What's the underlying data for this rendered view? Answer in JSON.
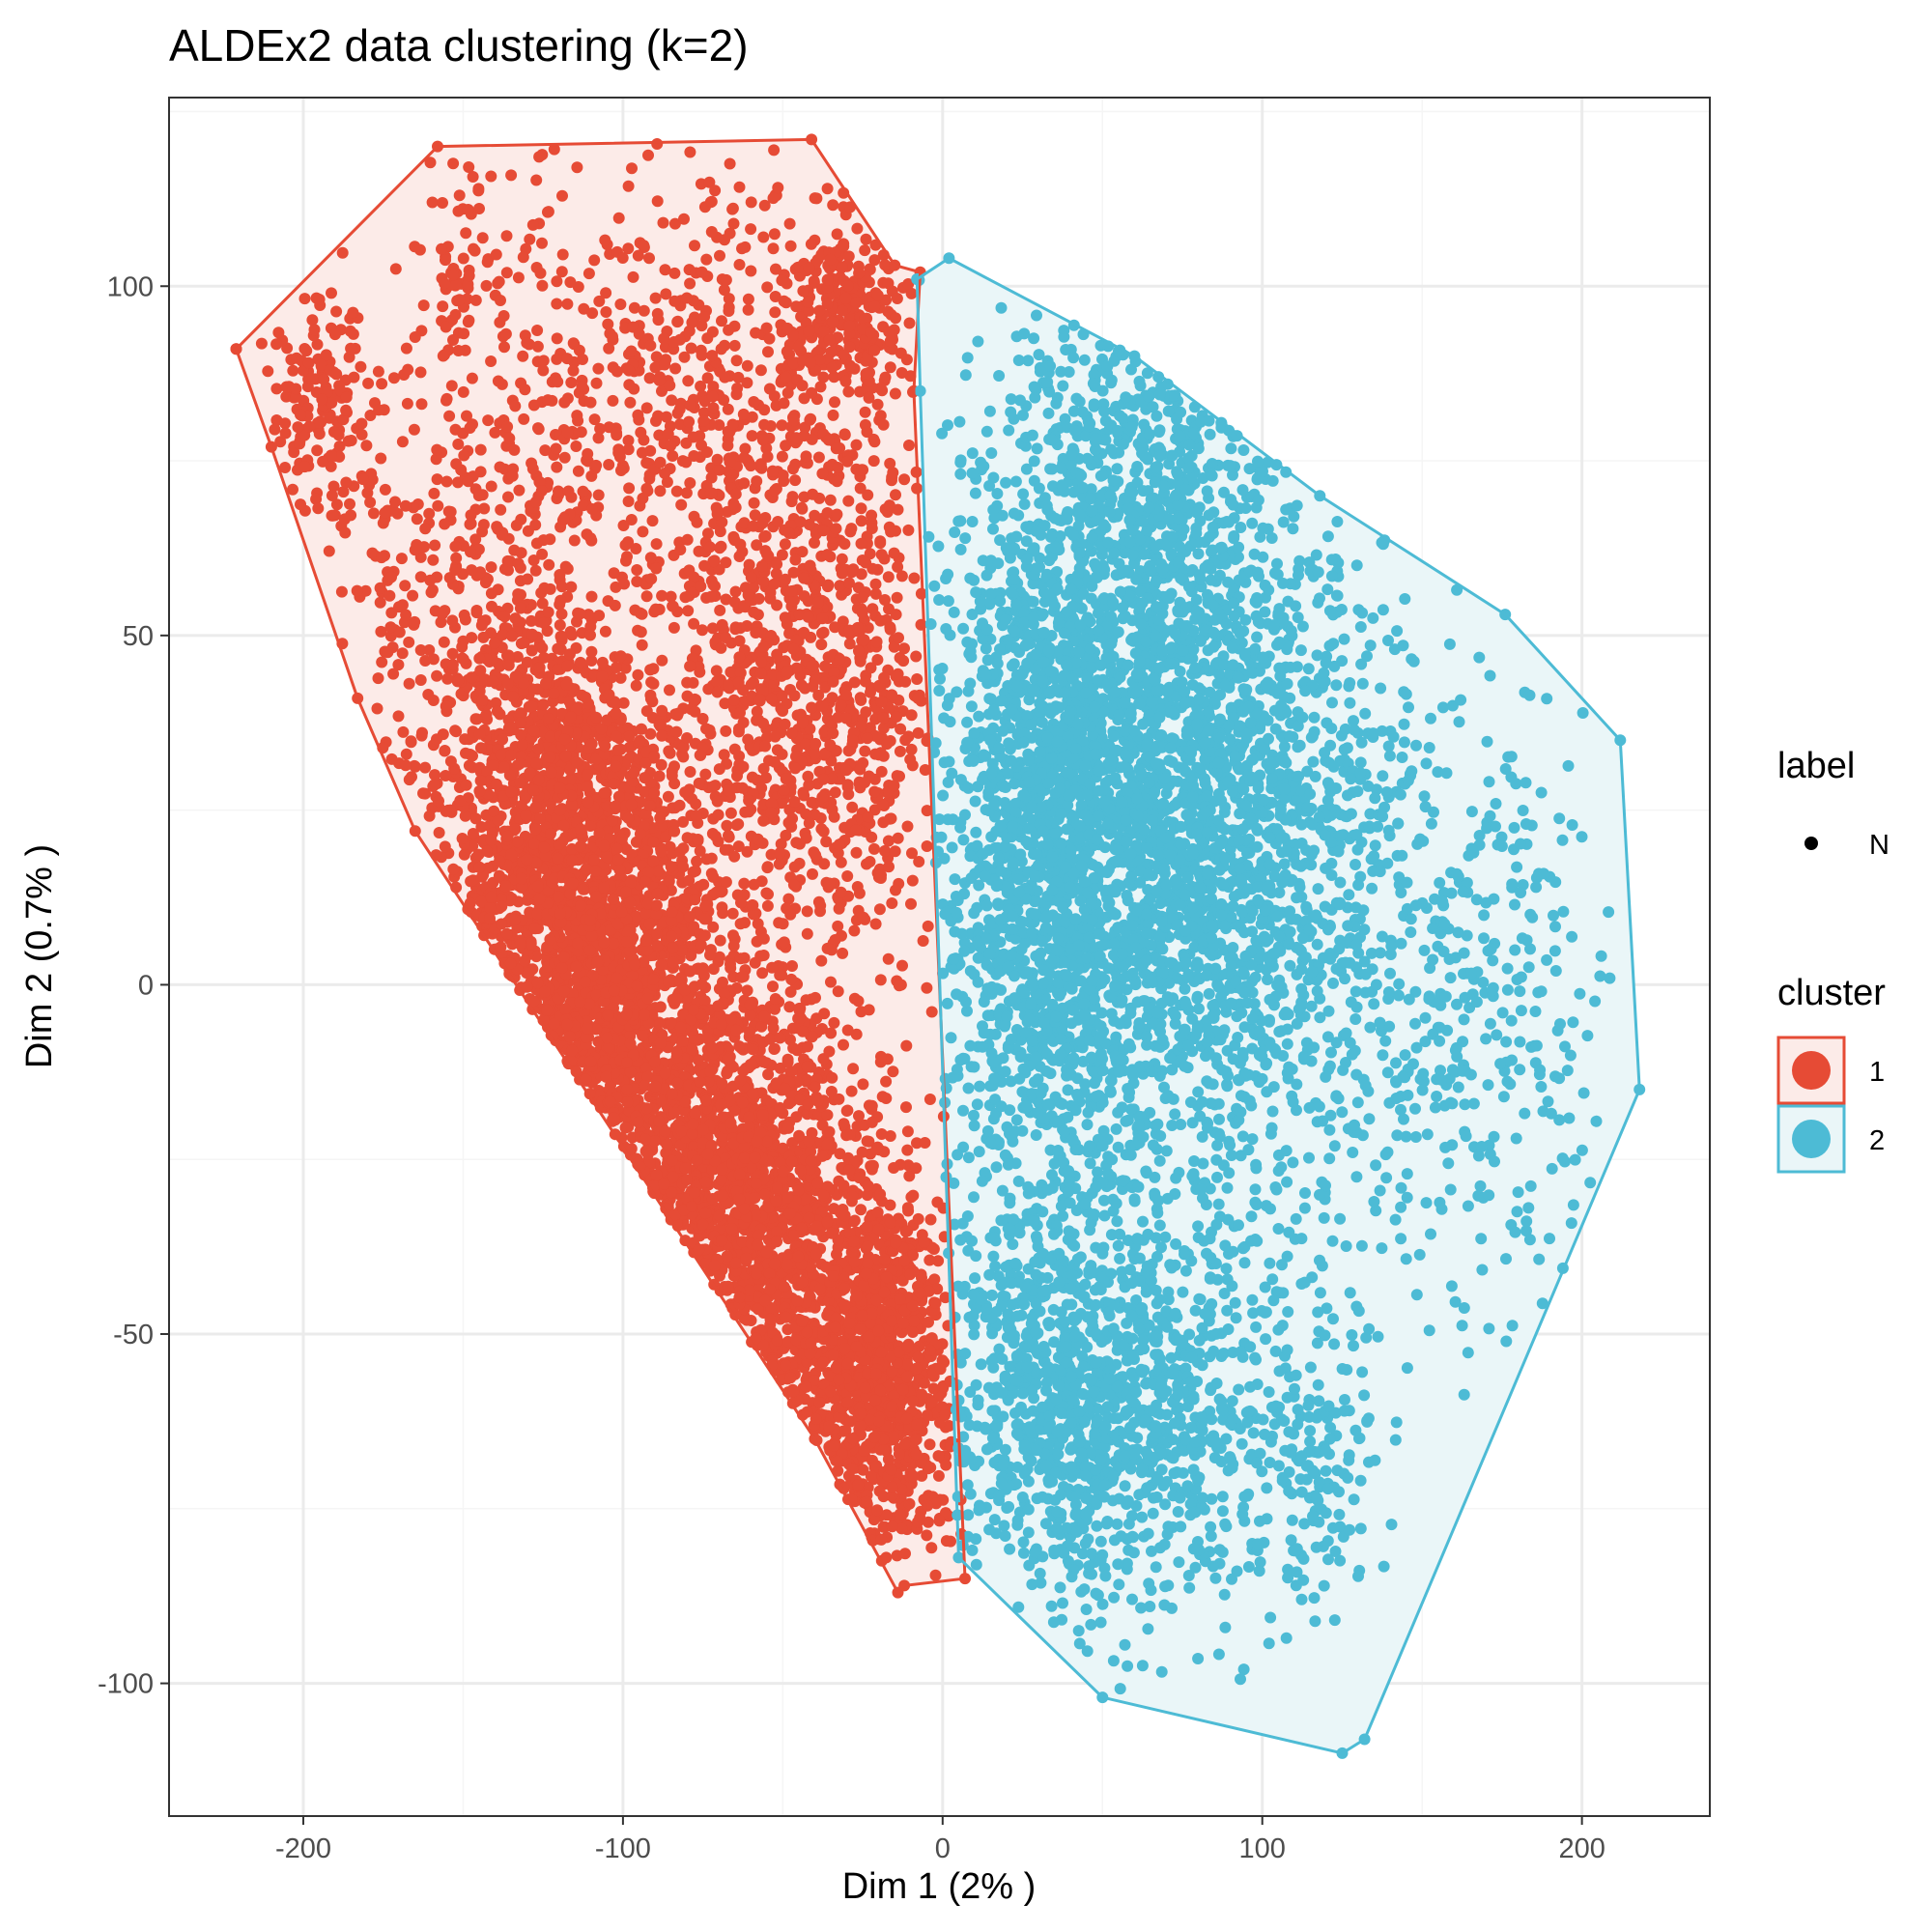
{
  "chart_data": {
    "type": "scatter",
    "title": "ALDEx2 data clustering (k=2)",
    "xlabel": "Dim 1 (2% )",
    "ylabel": "Dim 2 (0.7% )",
    "xlim": [
      -242,
      240
    ],
    "ylim": [
      -119,
      127
    ],
    "x_ticks": [
      -200,
      -100,
      0,
      100,
      200
    ],
    "y_ticks": [
      -100,
      -50,
      0,
      50,
      100
    ],
    "x_tick_labels": [
      "-200",
      "-100",
      "0",
      "100",
      "200"
    ],
    "y_tick_labels": [
      "-100",
      "-50",
      "0",
      "50",
      "100"
    ],
    "grid": true,
    "legend_position": "right",
    "legend": {
      "label_title": "label",
      "label_entries": [
        "N"
      ],
      "cluster_title": "cluster",
      "cluster_entries": [
        "1",
        "2"
      ]
    },
    "series": [
      {
        "name": "1",
        "color": "#E64B35",
        "fill": "#FCEBE8",
        "hull": [
          [
            -221,
            91
          ],
          [
            -158,
            120
          ],
          [
            -41,
            121
          ],
          [
            -15,
            103
          ],
          [
            -7,
            102
          ],
          [
            -9,
            85
          ],
          [
            7,
            -85
          ],
          [
            -12,
            -86
          ],
          [
            -14,
            -87
          ],
          [
            -40,
            -65
          ],
          [
            -165,
            22
          ],
          [
            -183,
            41
          ],
          [
            -210,
            77
          ],
          [
            -221,
            91
          ]
        ],
        "clusters": [
          {
            "cx": -110,
            "cy": -5,
            "sx": 22,
            "sy": 22,
            "n": 1600,
            "rot": -38
          },
          {
            "cx": -60,
            "cy": -35,
            "sx": 22,
            "sy": 18,
            "n": 1600,
            "rot": -40
          },
          {
            "cx": -20,
            "cy": -55,
            "sx": 12,
            "sy": 14,
            "n": 900,
            "rot": 0
          },
          {
            "cx": -120,
            "cy": 25,
            "sx": 18,
            "sy": 15,
            "n": 900,
            "rot": -30
          },
          {
            "cx": -40,
            "cy": 40,
            "sx": 22,
            "sy": 18,
            "n": 900,
            "rot": 0
          },
          {
            "cx": -60,
            "cy": 80,
            "sx": 30,
            "sy": 18,
            "n": 500,
            "rot": 0
          },
          {
            "cx": -120,
            "cy": 75,
            "sx": 25,
            "sy": 22,
            "n": 350,
            "rot": 0
          },
          {
            "cx": -195,
            "cy": 82,
            "sx": 9,
            "sy": 8,
            "n": 150,
            "rot": 0
          },
          {
            "cx": -30,
            "cy": 95,
            "sx": 10,
            "sy": 6,
            "n": 250,
            "rot": 0
          },
          {
            "cx": -160,
            "cy": 55,
            "sx": 18,
            "sy": 20,
            "n": 250,
            "rot": 0
          },
          {
            "cx": -150,
            "cy": 100,
            "sx": 6,
            "sy": 8,
            "n": 60,
            "rot": 0
          }
        ]
      },
      {
        "name": "2",
        "color": "#4DBBD5",
        "fill": "#EAF6F8",
        "hull": [
          [
            -8,
            101
          ],
          [
            2,
            104
          ],
          [
            60,
            90
          ],
          [
            118,
            70
          ],
          [
            176,
            53
          ],
          [
            212,
            35
          ],
          [
            218,
            -15
          ],
          [
            132,
            -108
          ],
          [
            125,
            -110
          ],
          [
            50,
            -102
          ],
          [
            5,
            -82
          ],
          [
            -7,
            85
          ],
          [
            -8,
            101
          ]
        ],
        "clusters": [
          {
            "cx": 60,
            "cy": 30,
            "sx": 28,
            "sy": 30,
            "n": 2600,
            "rot": 0
          },
          {
            "cx": 30,
            "cy": 10,
            "sx": 16,
            "sy": 30,
            "n": 1000,
            "rot": 0
          },
          {
            "cx": 100,
            "cy": 20,
            "sx": 20,
            "sy": 25,
            "n": 800,
            "rot": 0
          },
          {
            "cx": 40,
            "cy": -60,
            "sx": 22,
            "sy": 14,
            "n": 1000,
            "rot": 0
          },
          {
            "cx": 85,
            "cy": -60,
            "sx": 18,
            "sy": 15,
            "n": 300,
            "rot": 0
          },
          {
            "cx": 150,
            "cy": 0,
            "sx": 20,
            "sy": 25,
            "n": 350,
            "rot": 0
          },
          {
            "cx": 120,
            "cy": -70,
            "sx": 10,
            "sy": 10,
            "n": 120,
            "rot": 0
          },
          {
            "cx": 185,
            "cy": 0,
            "sx": 15,
            "sy": 25,
            "n": 120,
            "rot": 0
          },
          {
            "cx": 60,
            "cy": 75,
            "sx": 20,
            "sy": 12,
            "n": 300,
            "rot": 0
          }
        ]
      }
    ]
  },
  "colors": {
    "panel_border": "#333333",
    "grid_major": "#EBEBEB",
    "grid_minor": "#F5F5F5",
    "cluster1": "#E64B35",
    "cluster2": "#4DBBD5"
  }
}
